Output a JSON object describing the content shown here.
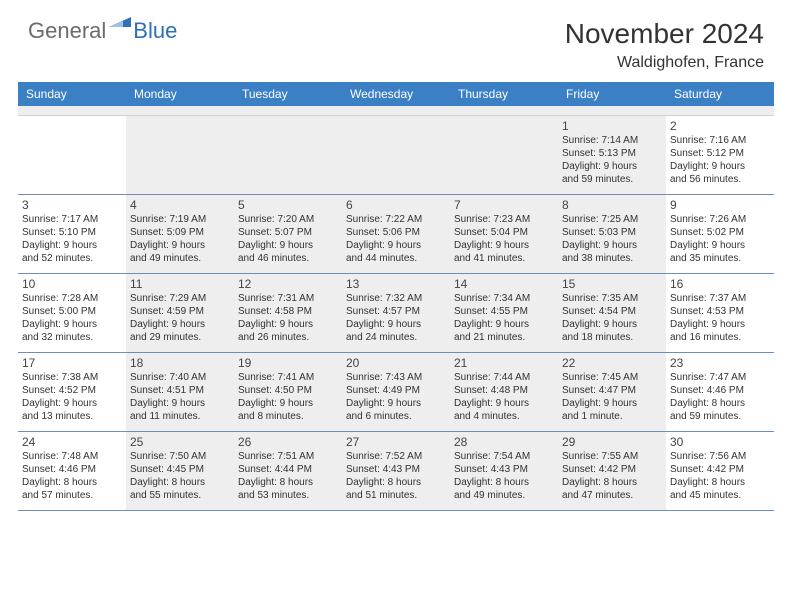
{
  "logo": {
    "general": "General",
    "blue": "Blue"
  },
  "title": {
    "month": "November 2024",
    "location": "Waldighofen, France"
  },
  "colors": {
    "header_bg": "#3b7fc4",
    "shaded_cell": "#eeeeee",
    "row_border": "#6b8fb5",
    "text": "#333333",
    "logo_gray": "#6b6b6b",
    "logo_blue": "#2e6fb5"
  },
  "dow": [
    "Sunday",
    "Monday",
    "Tuesday",
    "Wednesday",
    "Thursday",
    "Friday",
    "Saturday"
  ],
  "weeks": [
    [
      {
        "n": "",
        "lines": []
      },
      {
        "n": "",
        "lines": []
      },
      {
        "n": "",
        "lines": []
      },
      {
        "n": "",
        "lines": []
      },
      {
        "n": "",
        "lines": []
      },
      {
        "n": "1",
        "lines": [
          "Sunrise: 7:14 AM",
          "Sunset: 5:13 PM",
          "Daylight: 9 hours",
          "and 59 minutes."
        ]
      },
      {
        "n": "2",
        "lines": [
          "Sunrise: 7:16 AM",
          "Sunset: 5:12 PM",
          "Daylight: 9 hours",
          "and 56 minutes."
        ]
      }
    ],
    [
      {
        "n": "3",
        "lines": [
          "Sunrise: 7:17 AM",
          "Sunset: 5:10 PM",
          "Daylight: 9 hours",
          "and 52 minutes."
        ]
      },
      {
        "n": "4",
        "lines": [
          "Sunrise: 7:19 AM",
          "Sunset: 5:09 PM",
          "Daylight: 9 hours",
          "and 49 minutes."
        ]
      },
      {
        "n": "5",
        "lines": [
          "Sunrise: 7:20 AM",
          "Sunset: 5:07 PM",
          "Daylight: 9 hours",
          "and 46 minutes."
        ]
      },
      {
        "n": "6",
        "lines": [
          "Sunrise: 7:22 AM",
          "Sunset: 5:06 PM",
          "Daylight: 9 hours",
          "and 44 minutes."
        ]
      },
      {
        "n": "7",
        "lines": [
          "Sunrise: 7:23 AM",
          "Sunset: 5:04 PM",
          "Daylight: 9 hours",
          "and 41 minutes."
        ]
      },
      {
        "n": "8",
        "lines": [
          "Sunrise: 7:25 AM",
          "Sunset: 5:03 PM",
          "Daylight: 9 hours",
          "and 38 minutes."
        ]
      },
      {
        "n": "9",
        "lines": [
          "Sunrise: 7:26 AM",
          "Sunset: 5:02 PM",
          "Daylight: 9 hours",
          "and 35 minutes."
        ]
      }
    ],
    [
      {
        "n": "10",
        "lines": [
          "Sunrise: 7:28 AM",
          "Sunset: 5:00 PM",
          "Daylight: 9 hours",
          "and 32 minutes."
        ]
      },
      {
        "n": "11",
        "lines": [
          "Sunrise: 7:29 AM",
          "Sunset: 4:59 PM",
          "Daylight: 9 hours",
          "and 29 minutes."
        ]
      },
      {
        "n": "12",
        "lines": [
          "Sunrise: 7:31 AM",
          "Sunset: 4:58 PM",
          "Daylight: 9 hours",
          "and 26 minutes."
        ]
      },
      {
        "n": "13",
        "lines": [
          "Sunrise: 7:32 AM",
          "Sunset: 4:57 PM",
          "Daylight: 9 hours",
          "and 24 minutes."
        ]
      },
      {
        "n": "14",
        "lines": [
          "Sunrise: 7:34 AM",
          "Sunset: 4:55 PM",
          "Daylight: 9 hours",
          "and 21 minutes."
        ]
      },
      {
        "n": "15",
        "lines": [
          "Sunrise: 7:35 AM",
          "Sunset: 4:54 PM",
          "Daylight: 9 hours",
          "and 18 minutes."
        ]
      },
      {
        "n": "16",
        "lines": [
          "Sunrise: 7:37 AM",
          "Sunset: 4:53 PM",
          "Daylight: 9 hours",
          "and 16 minutes."
        ]
      }
    ],
    [
      {
        "n": "17",
        "lines": [
          "Sunrise: 7:38 AM",
          "Sunset: 4:52 PM",
          "Daylight: 9 hours",
          "and 13 minutes."
        ]
      },
      {
        "n": "18",
        "lines": [
          "Sunrise: 7:40 AM",
          "Sunset: 4:51 PM",
          "Daylight: 9 hours",
          "and 11 minutes."
        ]
      },
      {
        "n": "19",
        "lines": [
          "Sunrise: 7:41 AM",
          "Sunset: 4:50 PM",
          "Daylight: 9 hours",
          "and 8 minutes."
        ]
      },
      {
        "n": "20",
        "lines": [
          "Sunrise: 7:43 AM",
          "Sunset: 4:49 PM",
          "Daylight: 9 hours",
          "and 6 minutes."
        ]
      },
      {
        "n": "21",
        "lines": [
          "Sunrise: 7:44 AM",
          "Sunset: 4:48 PM",
          "Daylight: 9 hours",
          "and 4 minutes."
        ]
      },
      {
        "n": "22",
        "lines": [
          "Sunrise: 7:45 AM",
          "Sunset: 4:47 PM",
          "Daylight: 9 hours",
          "and 1 minute."
        ]
      },
      {
        "n": "23",
        "lines": [
          "Sunrise: 7:47 AM",
          "Sunset: 4:46 PM",
          "Daylight: 8 hours",
          "and 59 minutes."
        ]
      }
    ],
    [
      {
        "n": "24",
        "lines": [
          "Sunrise: 7:48 AM",
          "Sunset: 4:46 PM",
          "Daylight: 8 hours",
          "and 57 minutes."
        ]
      },
      {
        "n": "25",
        "lines": [
          "Sunrise: 7:50 AM",
          "Sunset: 4:45 PM",
          "Daylight: 8 hours",
          "and 55 minutes."
        ]
      },
      {
        "n": "26",
        "lines": [
          "Sunrise: 7:51 AM",
          "Sunset: 4:44 PM",
          "Daylight: 8 hours",
          "and 53 minutes."
        ]
      },
      {
        "n": "27",
        "lines": [
          "Sunrise: 7:52 AM",
          "Sunset: 4:43 PM",
          "Daylight: 8 hours",
          "and 51 minutes."
        ]
      },
      {
        "n": "28",
        "lines": [
          "Sunrise: 7:54 AM",
          "Sunset: 4:43 PM",
          "Daylight: 8 hours",
          "and 49 minutes."
        ]
      },
      {
        "n": "29",
        "lines": [
          "Sunrise: 7:55 AM",
          "Sunset: 4:42 PM",
          "Daylight: 8 hours",
          "and 47 minutes."
        ]
      },
      {
        "n": "30",
        "lines": [
          "Sunrise: 7:56 AM",
          "Sunset: 4:42 PM",
          "Daylight: 8 hours",
          "and 45 minutes."
        ]
      }
    ]
  ]
}
